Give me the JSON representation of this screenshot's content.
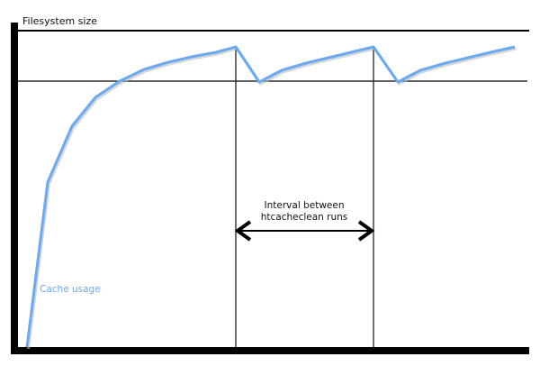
{
  "y_axis_label": "Filesystem size",
  "interval_label_line1": "Interval between",
  "interval_label_line2": "htcacheclean runs",
  "series_label": "Cache usage",
  "colors": {
    "cache_line": "#6aaaf0",
    "axes": "#000000"
  }
}
